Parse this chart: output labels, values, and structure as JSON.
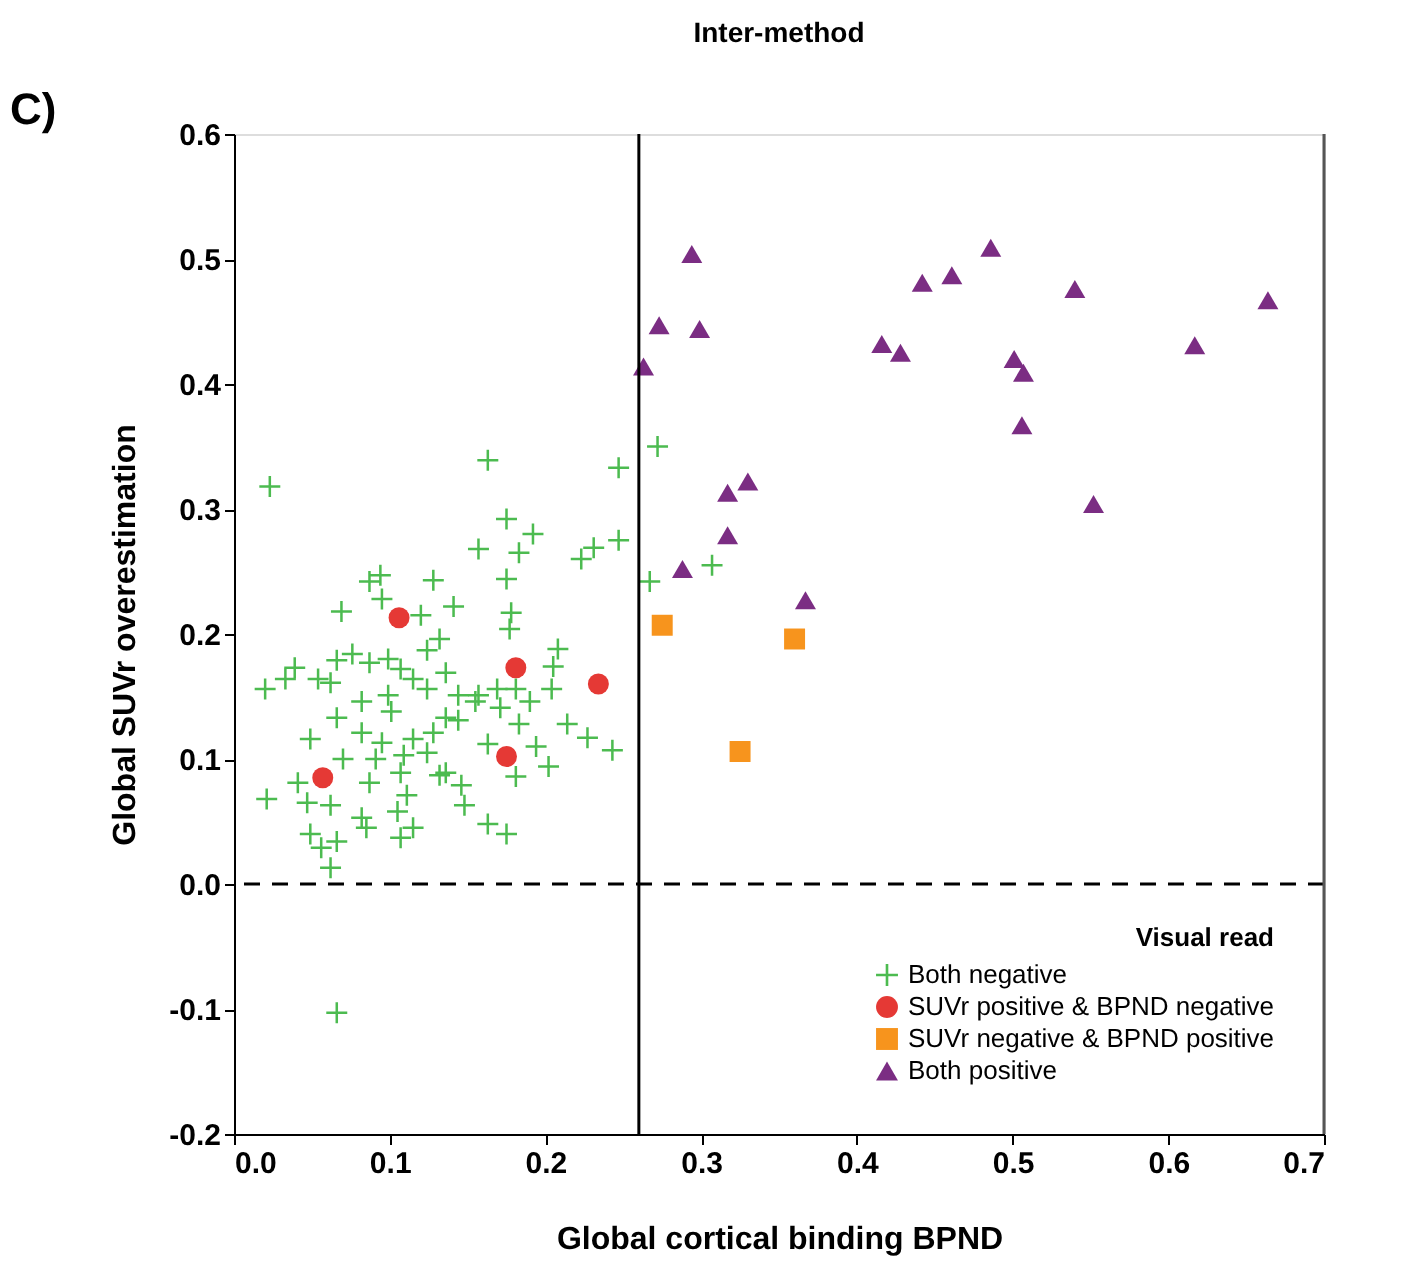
{
  "chart_data": {
    "type": "scatter",
    "title": "Inter-method",
    "xlabel": "Global cortical binding BPND",
    "ylabel": "Global SUVr overestimation",
    "legend_title": "Visual read",
    "legend": "bottom right",
    "annotations": [
      "C)"
    ],
    "xlim": [
      0,
      0.7
    ],
    "ylim": [
      -0.2,
      0.6
    ],
    "xticks": [
      {
        "value": 0,
        "label": "0.0"
      },
      0.1,
      0.2,
      0.3,
      0.4,
      0.5,
      0.6,
      0.7
    ],
    "yticks": [
      -0.2,
      -0.1,
      {
        "value": 0,
        "label": "0.0"
      },
      0.1,
      0.2,
      0.3,
      0.4,
      0.5,
      0.6
    ],
    "ref_lines": [
      {
        "axis": "x",
        "value": 0.26,
        "line_style": "solid",
        "color": "#000000"
      },
      {
        "axis": "y",
        "value": 0,
        "line_style": "dashed",
        "color": "#000000"
      }
    ],
    "series": [
      {
        "name": "Both negative",
        "color": "#4cbb50",
        "marker": "cross",
        "x": [
          0.163,
          0.247,
          0.023,
          0.175,
          0.192,
          0.157,
          0.183,
          0.223,
          0.231,
          0.247,
          0.094,
          0.087,
          0.128,
          0.175,
          0.095,
          0.069,
          0.141,
          0.12,
          0.178,
          0.177,
          0.132,
          0.124,
          0.208,
          0.205,
          0.076,
          0.066,
          0.039,
          0.033,
          0.02,
          0.054,
          0.062,
          0.087,
          0.099,
          0.107,
          0.115,
          0.136,
          0.124,
          0.099,
          0.082,
          0.066,
          0.101,
          0.144,
          0.157,
          0.169,
          0.181,
          0.204,
          0.19,
          0.155,
          0.136,
          0.171,
          0.183,
          0.214,
          0.227,
          0.243,
          0.194,
          0.202,
          0.181,
          0.163,
          0.144,
          0.128,
          0.115,
          0.095,
          0.082,
          0.049,
          0.07,
          0.091,
          0.109,
          0.124,
          0.136,
          0.146,
          0.132,
          0.107,
          0.087,
          0.041,
          0.021,
          0.047,
          0.062,
          0.111,
          0.105,
          0.082,
          0.085,
          0.115,
          0.107,
          0.049,
          0.056,
          0.066,
          0.062,
          0.163,
          0.175,
          0.148,
          0.272,
          0.267,
          0.307,
          0.066
        ],
        "values": [
          0.339,
          0.333,
          0.318,
          0.292,
          0.28,
          0.268,
          0.265,
          0.26,
          0.269,
          0.275,
          0.247,
          0.242,
          0.243,
          0.244,
          0.228,
          0.218,
          0.222,
          0.215,
          0.217,
          0.204,
          0.196,
          0.187,
          0.188,
          0.174,
          0.184,
          0.179,
          0.173,
          0.164,
          0.156,
          0.164,
          0.161,
          0.177,
          0.18,
          0.172,
          0.164,
          0.169,
          0.156,
          0.151,
          0.146,
          0.133,
          0.138,
          0.151,
          0.151,
          0.156,
          0.156,
          0.156,
          0.146,
          0.146,
          0.133,
          0.141,
          0.128,
          0.128,
          0.117,
          0.107,
          0.11,
          0.094,
          0.086,
          0.112,
          0.131,
          0.121,
          0.116,
          0.113,
          0.121,
          0.116,
          0.1,
          0.1,
          0.103,
          0.105,
          0.089,
          0.079,
          0.087,
          0.089,
          0.081,
          0.081,
          0.068,
          0.065,
          0.063,
          0.071,
          0.058,
          0.053,
          0.045,
          0.045,
          0.037,
          0.04,
          0.029,
          0.034,
          0.013,
          0.048,
          0.04,
          0.063,
          0.35,
          0.242,
          0.255,
          -0.103
        ]
      },
      {
        "name": "SUVr positive & BPND negative",
        "color": "#e53935",
        "marker": "circle",
        "x": [
          0.106,
          0.181,
          0.234,
          0.175,
          0.057
        ],
        "values": [
          0.213,
          0.173,
          0.16,
          0.102,
          0.085
        ]
      },
      {
        "name": "SUVr negative & BPND positive",
        "color": "#f7941d",
        "marker": "square",
        "x": [
          0.275,
          0.325,
          0.36
        ],
        "values": [
          0.207,
          0.106,
          0.196
        ]
      },
      {
        "name": "Both positive",
        "color": "#7b2d83",
        "marker": "triangle",
        "x": [
          0.263,
          0.273,
          0.294,
          0.299,
          0.416,
          0.428,
          0.442,
          0.461,
          0.486,
          0.54,
          0.501,
          0.507,
          0.506,
          0.552,
          0.617,
          0.664,
          0.288,
          0.317,
          0.317,
          0.33,
          0.367
        ],
        "values": [
          0.414,
          0.447,
          0.504,
          0.444,
          0.432,
          0.425,
          0.481,
          0.487,
          0.509,
          0.476,
          0.42,
          0.409,
          0.367,
          0.304,
          0.431,
          0.467,
          0.252,
          0.279,
          0.313,
          0.322,
          0.227
        ]
      }
    ]
  }
}
